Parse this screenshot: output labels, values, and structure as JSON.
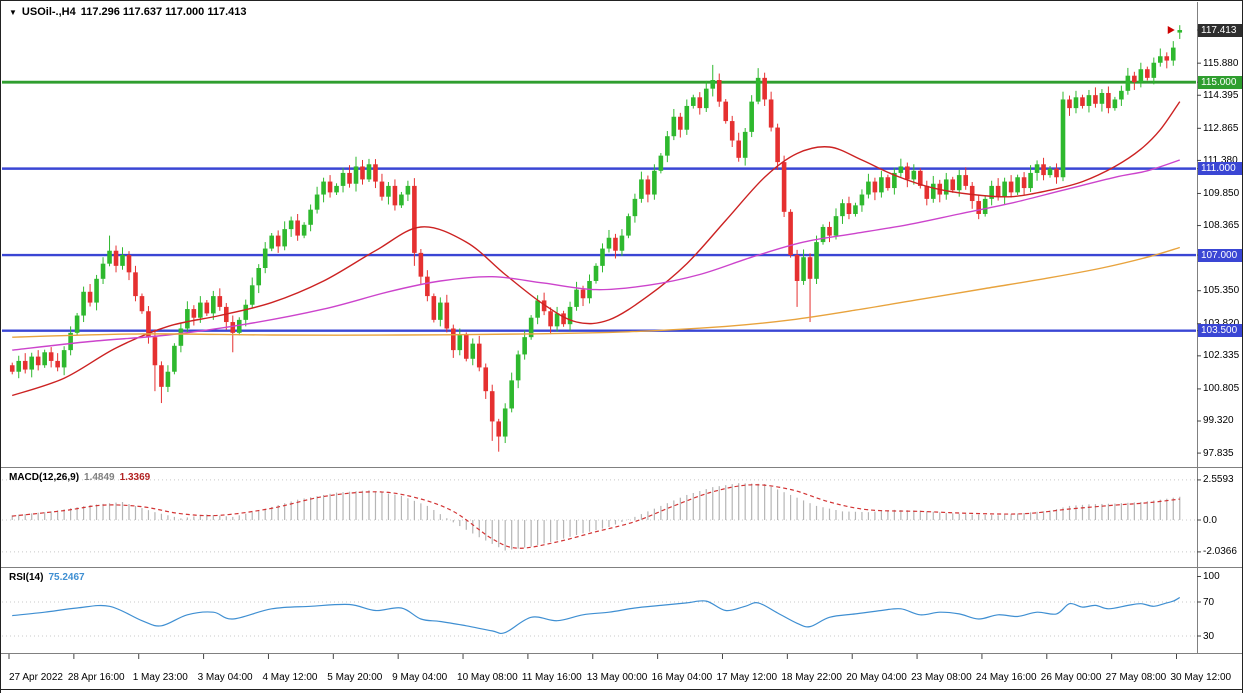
{
  "header": {
    "dropdown_icon": "▼",
    "title": "USOil-.,H4",
    "ohlc_text": "117.296 117.637 117.000 117.413"
  },
  "colors": {
    "bull": "#2eb82e",
    "bear": "#e53030",
    "ma_red": "#cc2222",
    "ma_magenta": "#cc44cc",
    "ma_orange": "#e8a33d",
    "hline_green": "#2f9e2f",
    "hline_blue": "#3a46d4",
    "macd_hist": "#b5b5b5",
    "macd_signal": "#d23333",
    "rsi_line": "#3f8fd2",
    "badge_current_bg": "#2e2e2e",
    "badge_green_bg": "#2f9e2f",
    "badge_blue_bg": "#3a46d4",
    "separator": "#808080",
    "dotted_level": "#c8c8c8",
    "axis_tick": "#444444",
    "arrow": "#cc0000"
  },
  "chart_data": {
    "type": "candlestick",
    "symbol": "USOil-.",
    "timeframe": "H4",
    "current_bar": {
      "open": 117.296,
      "high": 117.637,
      "low": 117.0,
      "close": 117.413
    },
    "first_open": 101.9,
    "closes": [
      101.6,
      102.1,
      101.7,
      102.3,
      101.9,
      102.5,
      102.1,
      101.8,
      102.6,
      103.4,
      104.2,
      105.3,
      104.8,
      105.9,
      106.6,
      107.2,
      106.5,
      107.0,
      106.2,
      105.1,
      104.4,
      103.2,
      101.9,
      100.9,
      101.6,
      102.8,
      103.6,
      104.5,
      104.1,
      104.8,
      104.3,
      105.1,
      104.6,
      103.9,
      103.4,
      104.0,
      104.7,
      105.6,
      106.4,
      107.3,
      107.9,
      107.4,
      108.2,
      108.6,
      107.9,
      108.4,
      109.1,
      109.8,
      110.4,
      109.9,
      110.2,
      110.8,
      110.3,
      111.1,
      110.5,
      111.2,
      110.4,
      109.7,
      110.2,
      109.3,
      109.8,
      110.2,
      107.1,
      106.0,
      105.1,
      104.0,
      104.8,
      103.6,
      102.6,
      103.3,
      102.2,
      102.9,
      101.8,
      100.7,
      99.3,
      98.6,
      99.9,
      101.2,
      102.4,
      103.2,
      104.1,
      104.9,
      104.4,
      103.7,
      104.3,
      103.8,
      104.6,
      105.4,
      105.0,
      105.8,
      106.5,
      107.3,
      107.8,
      107.2,
      107.9,
      108.8,
      109.6,
      110.5,
      109.8,
      110.9,
      111.6,
      112.5,
      113.4,
      112.8,
      113.9,
      114.3,
      113.8,
      114.7,
      115.1,
      114.1,
      113.2,
      112.3,
      111.5,
      112.7,
      114.1,
      115.2,
      114.2,
      112.9,
      111.3,
      109.0,
      107.0,
      105.8,
      106.9,
      105.9,
      107.6,
      108.3,
      107.9,
      108.8,
      109.4,
      108.9,
      109.3,
      109.8,
      110.4,
      109.9,
      110.6,
      110.1,
      110.8,
      111.1,
      110.5,
      110.9,
      110.2,
      109.6,
      110.3,
      109.8,
      110.5,
      110.0,
      110.7,
      110.2,
      109.5,
      108.9,
      109.6,
      110.2,
      109.7,
      110.4,
      109.9,
      110.6,
      110.1,
      110.8,
      111.2,
      110.7,
      111.0,
      110.6,
      114.2,
      113.8,
      114.3,
      113.9,
      114.4,
      114.0,
      114.5,
      113.8,
      114.2,
      114.6,
      115.3,
      115.0,
      115.6,
      115.2,
      115.9,
      116.2,
      116.0,
      116.6,
      117.413
    ],
    "candle_overrides": {
      "15": {
        "h": 107.9
      },
      "22": {
        "l": 100.7
      },
      "23": {
        "l": 100.15
      },
      "34": {
        "l": 102.5
      },
      "53": {
        "h": 111.55
      },
      "55": {
        "h": 111.45
      },
      "62": {
        "l": 106.5
      },
      "74": {
        "l": 98.4
      },
      "75": {
        "l": 97.9
      },
      "108": {
        "h": 115.8
      },
      "115": {
        "h": 115.65
      },
      "121": {
        "l": 104.6
      },
      "123": {
        "l": 103.9
      },
      "180": {
        "o": 117.296,
        "h": 117.637,
        "l": 117.0,
        "c": 117.413
      }
    },
    "y_axis": [
      {
        "label": "117.413",
        "price": 117.413,
        "style": "current"
      },
      {
        "label": "115.880",
        "price": 115.88,
        "style": "tick"
      },
      {
        "label": "115.000",
        "price": 115.0,
        "style": "green"
      },
      {
        "label": "114.395",
        "price": 114.395,
        "style": "tick"
      },
      {
        "label": "112.865",
        "price": 112.865,
        "style": "tick"
      },
      {
        "label": "111.380",
        "price": 111.38,
        "style": "tick"
      },
      {
        "label": "111.000",
        "price": 111.0,
        "style": "blue"
      },
      {
        "label": "109.850",
        "price": 109.85,
        "style": "tick"
      },
      {
        "label": "108.365",
        "price": 108.365,
        "style": "tick"
      },
      {
        "label": "107.000",
        "price": 107.0,
        "style": "blue"
      },
      {
        "label": "105.350",
        "price": 105.35,
        "style": "tick"
      },
      {
        "label": "103.820",
        "price": 103.82,
        "style": "tick"
      },
      {
        "label": "103.500",
        "price": 103.5,
        "style": "blue"
      },
      {
        "label": "102.335",
        "price": 102.335,
        "style": "tick"
      },
      {
        "label": "100.805",
        "price": 100.805,
        "style": "tick"
      },
      {
        "label": "99.320",
        "price": 99.32,
        "style": "tick"
      },
      {
        "label": "97.835",
        "price": 97.835,
        "style": "tick"
      }
    ],
    "horizontal_lines": [
      {
        "price": 115.0,
        "label": "115.000",
        "color_key": "hline_green",
        "stroke_width": 2.8
      },
      {
        "price": 111.0,
        "label": "111.000",
        "color_key": "hline_blue",
        "stroke_width": 2.4
      },
      {
        "price": 107.0,
        "label": "107.000",
        "color_key": "hline_blue",
        "stroke_width": 2.4
      },
      {
        "price": 103.5,
        "label": "103.500",
        "color_key": "hline_blue",
        "stroke_width": 2.4
      }
    ],
    "moving_averages": [
      {
        "name": "ma-fast-red",
        "color_key": "ma_red",
        "points": [
          [
            0,
            100.5
          ],
          [
            8,
            101.3
          ],
          [
            16,
            102.7
          ],
          [
            24,
            103.7
          ],
          [
            32,
            104.2
          ],
          [
            40,
            104.8
          ],
          [
            48,
            105.8
          ],
          [
            56,
            107.2
          ],
          [
            63,
            108.3
          ],
          [
            70,
            107.6
          ],
          [
            76,
            106.1
          ],
          [
            82,
            104.7
          ],
          [
            87,
            103.9
          ],
          [
            92,
            104.0
          ],
          [
            98,
            105.1
          ],
          [
            104,
            106.6
          ],
          [
            110,
            108.6
          ],
          [
            116,
            110.6
          ],
          [
            121,
            111.7
          ],
          [
            126,
            112.0
          ],
          [
            131,
            111.4
          ],
          [
            136,
            110.7
          ],
          [
            142,
            110.1
          ],
          [
            148,
            109.8
          ],
          [
            154,
            109.7
          ],
          [
            160,
            110.0
          ],
          [
            165,
            110.4
          ],
          [
            170,
            111.1
          ],
          [
            174,
            111.9
          ],
          [
            177,
            112.8
          ],
          [
            180,
            114.1
          ]
        ]
      },
      {
        "name": "ma-mid-magenta",
        "color_key": "ma_magenta",
        "points": [
          [
            0,
            102.6
          ],
          [
            12,
            103.0
          ],
          [
            24,
            103.3
          ],
          [
            36,
            103.8
          ],
          [
            48,
            104.5
          ],
          [
            58,
            105.3
          ],
          [
            66,
            105.8
          ],
          [
            74,
            106.0
          ],
          [
            82,
            105.7
          ],
          [
            90,
            105.4
          ],
          [
            98,
            105.6
          ],
          [
            106,
            106.1
          ],
          [
            114,
            106.9
          ],
          [
            122,
            107.6
          ],
          [
            130,
            108.0
          ],
          [
            138,
            108.4
          ],
          [
            146,
            108.9
          ],
          [
            154,
            109.4
          ],
          [
            162,
            110.0
          ],
          [
            170,
            110.6
          ],
          [
            175,
            110.9
          ],
          [
            180,
            111.4
          ]
        ]
      },
      {
        "name": "ma-slow-orange",
        "color_key": "ma_orange",
        "points": [
          [
            0,
            103.2
          ],
          [
            20,
            103.35
          ],
          [
            40,
            103.3
          ],
          [
            60,
            103.3
          ],
          [
            80,
            103.35
          ],
          [
            95,
            103.45
          ],
          [
            110,
            103.7
          ],
          [
            120,
            104.0
          ],
          [
            130,
            104.45
          ],
          [
            140,
            104.95
          ],
          [
            150,
            105.45
          ],
          [
            160,
            105.95
          ],
          [
            168,
            106.4
          ],
          [
            175,
            106.9
          ],
          [
            180,
            107.35
          ]
        ]
      }
    ],
    "x_labels": [
      "27 Apr 2022",
      "28 Apr 16:00",
      "1 May 23:00",
      "3 May 04:00",
      "4 May 12:00",
      "5 May 20:00",
      "9 May 04:00",
      "10 May 08:00",
      "11 May 16:00",
      "13 May 00:00",
      "16 May 04:00",
      "17 May 12:00",
      "18 May 22:00",
      "20 May 04:00",
      "23 May 08:00",
      "24 May 16:00",
      "26 May 00:00",
      "27 May 08:00",
      "30 May 12:00"
    ],
    "macd": {
      "label": "MACD(12,26,9)",
      "main_value": "1.4849",
      "signal_value": "1.3369",
      "axis": [
        {
          "label": "2.5593",
          "value": 2.5593
        },
        {
          "label": "0.0",
          "value": 0
        },
        {
          "label": "-2.0366",
          "value": -2.0366
        }
      ],
      "histogram_points": [
        [
          0,
          0.3
        ],
        [
          6,
          0.55
        ],
        [
          12,
          0.95
        ],
        [
          17,
          1.15
        ],
        [
          22,
          0.5
        ],
        [
          26,
          0.1
        ],
        [
          30,
          0.35
        ],
        [
          34,
          0.2
        ],
        [
          38,
          0.6
        ],
        [
          44,
          1.3
        ],
        [
          50,
          1.75
        ],
        [
          55,
          1.9
        ],
        [
          60,
          1.55
        ],
        [
          64,
          0.9
        ],
        [
          68,
          -0.15
        ],
        [
          72,
          -1.1
        ],
        [
          76,
          -1.95
        ],
        [
          80,
          -1.7
        ],
        [
          84,
          -1.3
        ],
        [
          88,
          -0.85
        ],
        [
          92,
          -0.45
        ],
        [
          96,
          0.2
        ],
        [
          100,
          0.9
        ],
        [
          104,
          1.6
        ],
        [
          108,
          2.1
        ],
        [
          112,
          2.35
        ],
        [
          116,
          2.3
        ],
        [
          120,
          1.6
        ],
        [
          124,
          0.9
        ],
        [
          128,
          0.55
        ],
        [
          132,
          0.5
        ],
        [
          136,
          0.65
        ],
        [
          140,
          0.6
        ],
        [
          144,
          0.45
        ],
        [
          148,
          0.35
        ],
        [
          152,
          0.3
        ],
        [
          156,
          0.45
        ],
        [
          160,
          0.6
        ],
        [
          163,
          0.9
        ],
        [
          166,
          1.0
        ],
        [
          170,
          1.05
        ],
        [
          174,
          1.15
        ],
        [
          177,
          1.3
        ],
        [
          180,
          1.4849
        ]
      ],
      "signal_points": [
        [
          0,
          0.25
        ],
        [
          8,
          0.6
        ],
        [
          14,
          0.95
        ],
        [
          20,
          0.85
        ],
        [
          26,
          0.4
        ],
        [
          32,
          0.3
        ],
        [
          40,
          0.75
        ],
        [
          48,
          1.5
        ],
        [
          56,
          1.8
        ],
        [
          62,
          1.45
        ],
        [
          68,
          0.55
        ],
        [
          74,
          -1.2
        ],
        [
          78,
          -1.8
        ],
        [
          84,
          -1.4
        ],
        [
          90,
          -0.75
        ],
        [
          96,
          -0.1
        ],
        [
          102,
          0.9
        ],
        [
          108,
          1.8
        ],
        [
          114,
          2.25
        ],
        [
          120,
          1.95
        ],
        [
          126,
          1.15
        ],
        [
          132,
          0.65
        ],
        [
          140,
          0.55
        ],
        [
          148,
          0.42
        ],
        [
          156,
          0.4
        ],
        [
          163,
          0.7
        ],
        [
          170,
          0.95
        ],
        [
          175,
          1.1
        ],
        [
          180,
          1.3369
        ]
      ]
    },
    "rsi": {
      "label": "RSI(14)",
      "value": "75.2467",
      "axis": [
        {
          "label": "100",
          "value": 100
        },
        {
          "label": "70",
          "value": 70
        },
        {
          "label": "30",
          "value": 30
        }
      ],
      "levels": [
        70,
        30
      ],
      "points": [
        [
          0,
          54
        ],
        [
          5,
          58
        ],
        [
          10,
          63
        ],
        [
          15,
          65
        ],
        [
          20,
          48
        ],
        [
          23,
          42
        ],
        [
          27,
          55
        ],
        [
          31,
          58
        ],
        [
          34,
          50
        ],
        [
          40,
          62
        ],
        [
          46,
          65
        ],
        [
          52,
          67
        ],
        [
          56,
          60
        ],
        [
          60,
          63
        ],
        [
          63,
          50
        ],
        [
          66,
          47
        ],
        [
          70,
          42
        ],
        [
          74,
          36
        ],
        [
          76,
          34
        ],
        [
          80,
          52
        ],
        [
          84,
          48
        ],
        [
          88,
          55
        ],
        [
          92,
          58
        ],
        [
          96,
          63
        ],
        [
          100,
          66
        ],
        [
          104,
          69
        ],
        [
          107,
          71
        ],
        [
          110,
          60
        ],
        [
          113,
          65
        ],
        [
          115,
          69
        ],
        [
          118,
          57
        ],
        [
          121,
          45
        ],
        [
          123,
          41
        ],
        [
          126,
          52
        ],
        [
          130,
          56
        ],
        [
          134,
          60
        ],
        [
          137,
          62
        ],
        [
          140,
          55
        ],
        [
          143,
          58
        ],
        [
          146,
          56
        ],
        [
          149,
          50
        ],
        [
          152,
          55
        ],
        [
          155,
          53
        ],
        [
          158,
          58
        ],
        [
          161,
          56
        ],
        [
          163,
          68
        ],
        [
          165,
          64
        ],
        [
          167,
          66
        ],
        [
          169,
          62
        ],
        [
          172,
          66
        ],
        [
          174,
          68
        ],
        [
          176,
          65
        ],
        [
          178,
          69
        ],
        [
          179,
          71
        ],
        [
          180,
          75.25
        ]
      ]
    }
  }
}
